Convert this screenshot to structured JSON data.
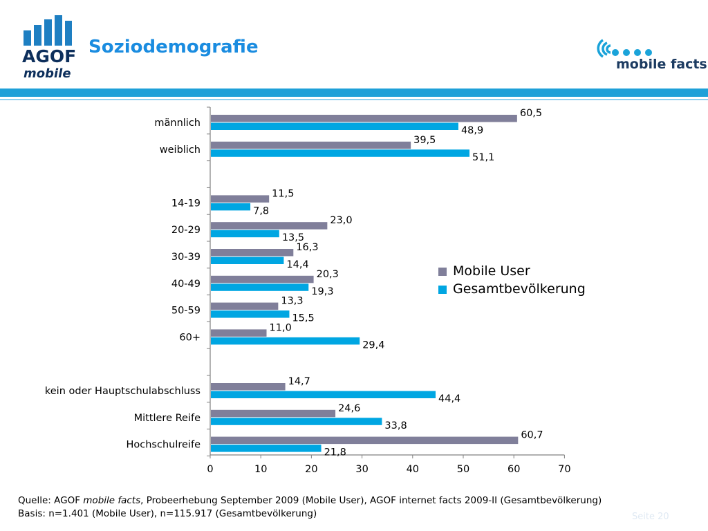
{
  "header": {
    "title": "Soziodemografie",
    "agof_logo": {
      "text": "AGOF",
      "sub": "mobile",
      "color": "#1e7fc2"
    },
    "mobile_facts_logo": {
      "text": "mobile facts",
      "color": "#1aa3d9"
    },
    "accent_color": "#1a8ce0"
  },
  "chart_data": {
    "type": "bar",
    "orientation": "horizontal",
    "categories": [
      "männlich",
      "weiblich",
      "",
      "14-19",
      "20-29",
      "30-39",
      "40-49",
      "50-59",
      "60+",
      "",
      "kein oder Hauptschulabschluss",
      "Mittlere Reife",
      "Hochschulreife"
    ],
    "series": [
      {
        "name": "Mobile User",
        "color": "#807f9a",
        "values": [
          60.5,
          39.5,
          null,
          11.5,
          23.0,
          16.3,
          20.3,
          13.3,
          11.0,
          null,
          14.7,
          24.6,
          60.7
        ],
        "labels": [
          "60,5",
          "39,5",
          "",
          "11,5",
          "23,0",
          "16,3",
          "20,3",
          "13,3",
          "11,0",
          "",
          "14,7",
          "24,6",
          "60,7"
        ]
      },
      {
        "name": "Gesamtbevölkerung",
        "color": "#00a6e2",
        "values": [
          48.9,
          51.1,
          null,
          7.8,
          13.5,
          14.4,
          19.3,
          15.5,
          29.4,
          null,
          44.4,
          33.8,
          21.8
        ],
        "labels": [
          "48,9",
          "51,1",
          "",
          "7,8",
          "13,5",
          "14,4",
          "19,3",
          "15,5",
          "29,4",
          "",
          "44,4",
          "33,8",
          "21,8"
        ]
      }
    ],
    "xlim": [
      0,
      70
    ],
    "xticks": [
      "0",
      "10",
      "20",
      "30",
      "40",
      "50",
      "60",
      "70"
    ],
    "grid": false,
    "legend_position": "right"
  },
  "footer": {
    "source_prefix": "Quelle: AGOF ",
    "source_italic": "mobile facts",
    "source_suffix": ", Probeerhebung September 2009 (Mobile User), AGOF internet facts 2009-II (Gesamtbevölkerung)",
    "basis": "Basis: n=1.401 (Mobile User), n=115.917 (Gesamtbevölkerung)",
    "page": "Seite 20"
  }
}
